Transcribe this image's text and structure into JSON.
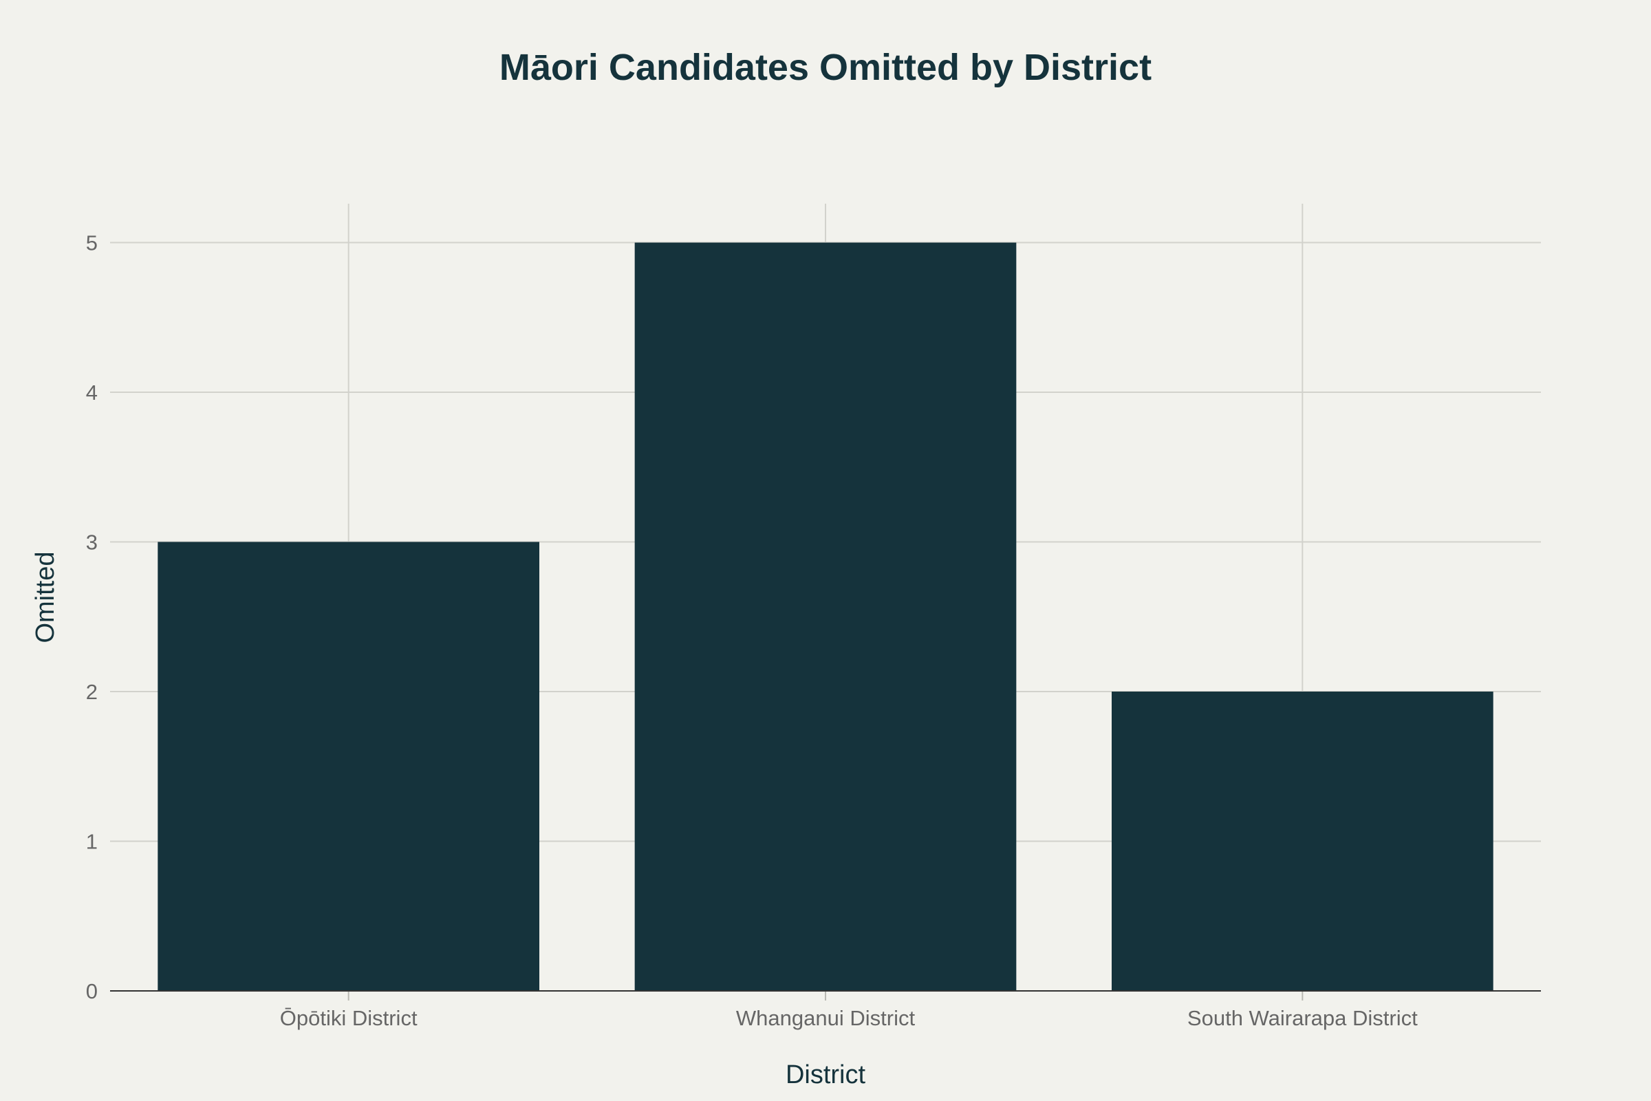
{
  "colors": {
    "background": "#f2f2ed",
    "bar": "#15333c",
    "title": "#15333c",
    "grid": "#d2d2cc",
    "tick_label": "#666666"
  },
  "chart_data": {
    "type": "bar",
    "title": "Māori Candidates Omitted by District",
    "xlabel": "District",
    "ylabel": "Omitted",
    "categories": [
      "Ōpōtiki District",
      "Whanganui District",
      "South Wairarapa District"
    ],
    "values": [
      3,
      5,
      2
    ],
    "ylim": [
      0,
      5.26
    ],
    "yticks": [
      0,
      1,
      2,
      3,
      4,
      5
    ],
    "grid": true,
    "legend": "none"
  }
}
